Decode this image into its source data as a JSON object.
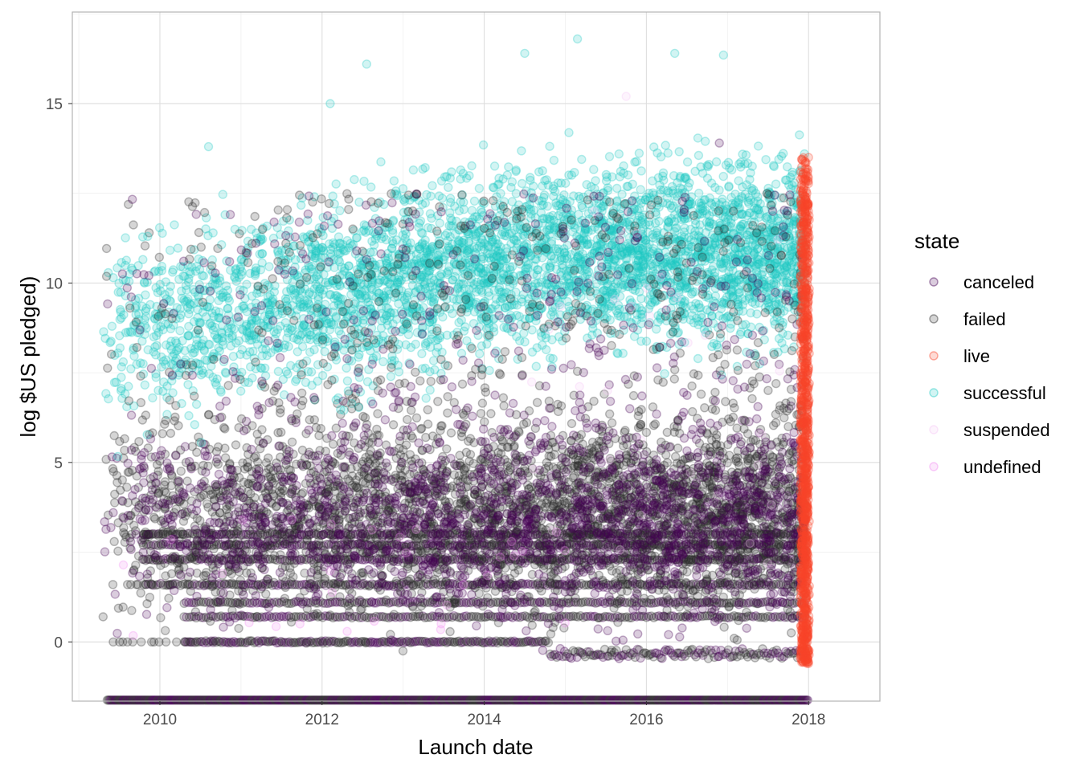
{
  "chart_data": {
    "type": "scatter",
    "title": "",
    "xlabel": "Launch date",
    "ylabel": "log $US pledged)",
    "x_ticks": [
      "2010",
      "2012",
      "2014",
      "2016",
      "2018"
    ],
    "y_ticks": [
      "0",
      "5",
      "10",
      "15"
    ],
    "xlim": [
      2008.92,
      2018.88
    ],
    "ylim": [
      -1.65,
      17.55
    ],
    "grid": true,
    "legend": {
      "title": "state",
      "position": "right",
      "entries": [
        {
          "name": "canceled",
          "color": "#440154"
        },
        {
          "name": "failed",
          "color": "#2b2b2b"
        },
        {
          "name": "live",
          "color": "#f8442a"
        },
        {
          "name": "successful",
          "color": "#1ec9c4"
        },
        {
          "name": "suspended",
          "color": "#f7c8f7"
        },
        {
          "name": "undefined",
          "color": "#f28ef2"
        }
      ]
    },
    "point_opacity": 0.2,
    "series": [
      {
        "name": "successful",
        "x_range": [
          2009.3,
          2017.95
        ],
        "y_center_start": 8.5,
        "y_center_end": 10.8,
        "y_spread": 1.7,
        "y_max_observed": 16.8
      },
      {
        "name": "failed",
        "x_range": [
          2009.3,
          2017.95
        ],
        "y_center": 3.6,
        "y_spread": 1.8,
        "y_min_observed": -1.65
      },
      {
        "name": "canceled",
        "x_range": [
          2009.3,
          2017.95
        ],
        "y_center": 3.4,
        "y_spread": 1.8,
        "y_min_observed": -1.65
      },
      {
        "name": "live",
        "x_range": [
          2017.9,
          2018.0
        ],
        "y_range": [
          -0.6,
          13.5
        ]
      },
      {
        "name": "suspended",
        "x_range": [
          2014.5,
          2017.9
        ],
        "y_range": [
          0,
          15.2
        ]
      },
      {
        "name": "undefined",
        "x_range": [
          2009.3,
          2015.0
        ],
        "y_range": [
          0,
          3.5
        ]
      }
    ],
    "highlights": [
      {
        "state": "successful",
        "x": 2015.15,
        "y": 16.8
      },
      {
        "state": "successful",
        "x": 2012.55,
        "y": 16.1
      },
      {
        "state": "successful",
        "x": 2014.5,
        "y": 16.4
      },
      {
        "state": "successful",
        "x": 2016.35,
        "y": 16.4
      },
      {
        "state": "successful",
        "x": 2016.95,
        "y": 16.35
      },
      {
        "state": "successful",
        "x": 2012.1,
        "y": 15.0
      },
      {
        "state": "successful",
        "x": 2010.6,
        "y": 13.8
      },
      {
        "state": "successful",
        "x": 2009.85,
        "y": 11.3
      },
      {
        "state": "failed",
        "x": 2009.6,
        "y": 0
      },
      {
        "state": "failed",
        "x": 2009.3,
        "y": 0.7
      },
      {
        "state": "live",
        "x": 2018.0,
        "y": 13.5
      },
      {
        "state": "live",
        "x": 2018.0,
        "y": -0.6
      },
      {
        "state": "suspended",
        "x": 2015.75,
        "y": 15.2
      },
      {
        "state": "canceled",
        "x": 2016.9,
        "y": 13.9
      }
    ]
  }
}
